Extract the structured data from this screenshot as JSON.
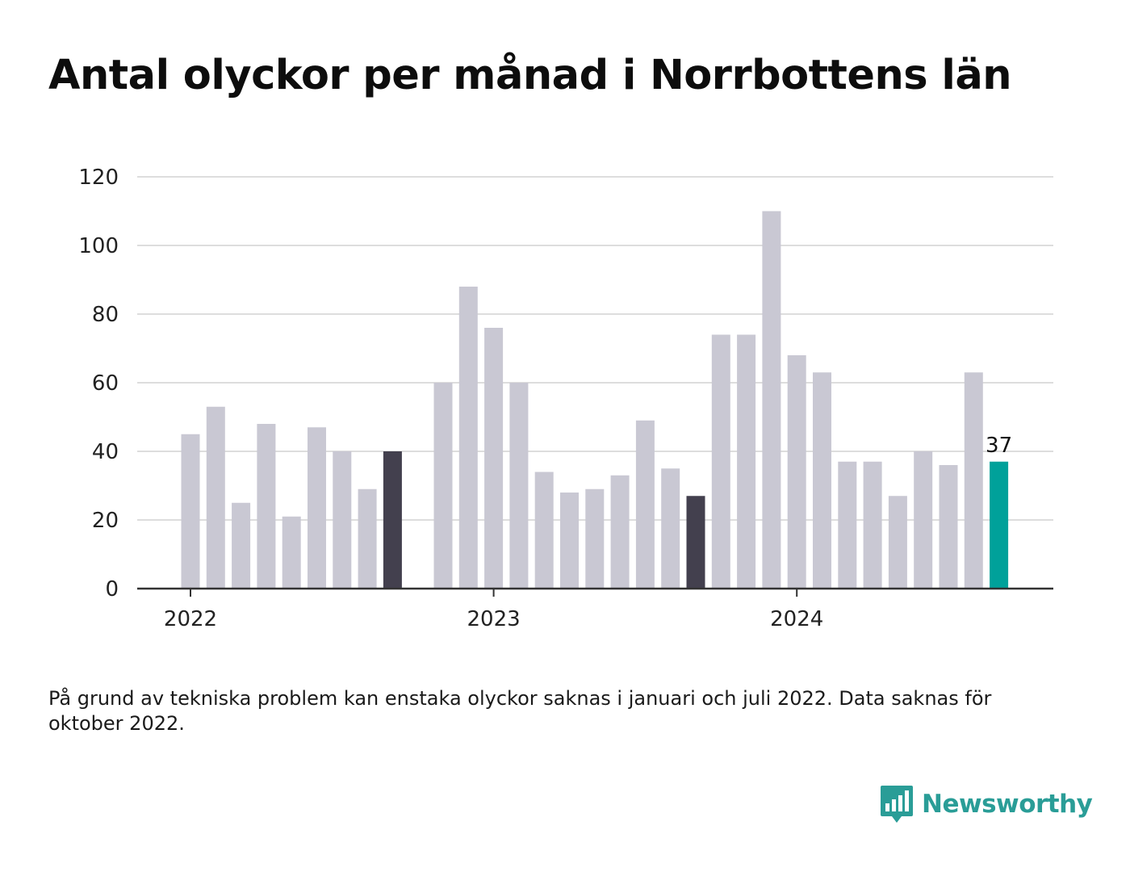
{
  "title": "Antal olyckor per månad i Norrbottens län",
  "footnote": "På grund av tekniska problem kan enstaka olyckor saknas i januari och juli 2022. Data saknas för oktober 2022.",
  "brand": {
    "name": "Newsworthy",
    "icon": "bar-chart-speech-bubble-icon",
    "color": "#2a9d97"
  },
  "colors": {
    "default_bar": "#c9c8d3",
    "highlight_bar": "#43404e",
    "latest_bar": "#00a19a",
    "grid": "#dddddd",
    "axis": "#333333"
  },
  "chart_data": {
    "type": "bar",
    "x_axis_type": "monthly",
    "x_tick_labels": [
      "2022",
      "2023",
      "2024"
    ],
    "months": [
      "2022-01",
      "2022-02",
      "2022-03",
      "2022-04",
      "2022-05",
      "2022-06",
      "2022-07",
      "2022-08",
      "2022-09",
      "2022-10",
      "2022-11",
      "2022-12",
      "2023-01",
      "2023-02",
      "2023-03",
      "2023-04",
      "2023-05",
      "2023-06",
      "2023-07",
      "2023-08",
      "2023-09",
      "2023-10",
      "2023-11",
      "2023-12",
      "2024-01",
      "2024-02",
      "2024-03",
      "2024-04",
      "2024-05",
      "2024-06",
      "2024-07",
      "2024-08",
      "2024-09"
    ],
    "values": [
      45,
      53,
      25,
      48,
      21,
      47,
      40,
      29,
      40,
      null,
      60,
      88,
      76,
      60,
      34,
      28,
      29,
      33,
      49,
      35,
      27,
      74,
      74,
      110,
      68,
      63,
      37,
      37,
      27,
      40,
      36,
      63,
      37
    ],
    "highlight_months": [
      "2022-09",
      "2023-09"
    ],
    "latest_month": "2024-09",
    "data_labels": [
      {
        "month": "2024-09",
        "text": "37"
      }
    ],
    "ylim": [
      0,
      120
    ],
    "y_ticks": [
      0,
      20,
      40,
      60,
      80,
      100,
      120
    ],
    "grid": true,
    "legend": "none",
    "xlabel": "",
    "ylabel": ""
  }
}
